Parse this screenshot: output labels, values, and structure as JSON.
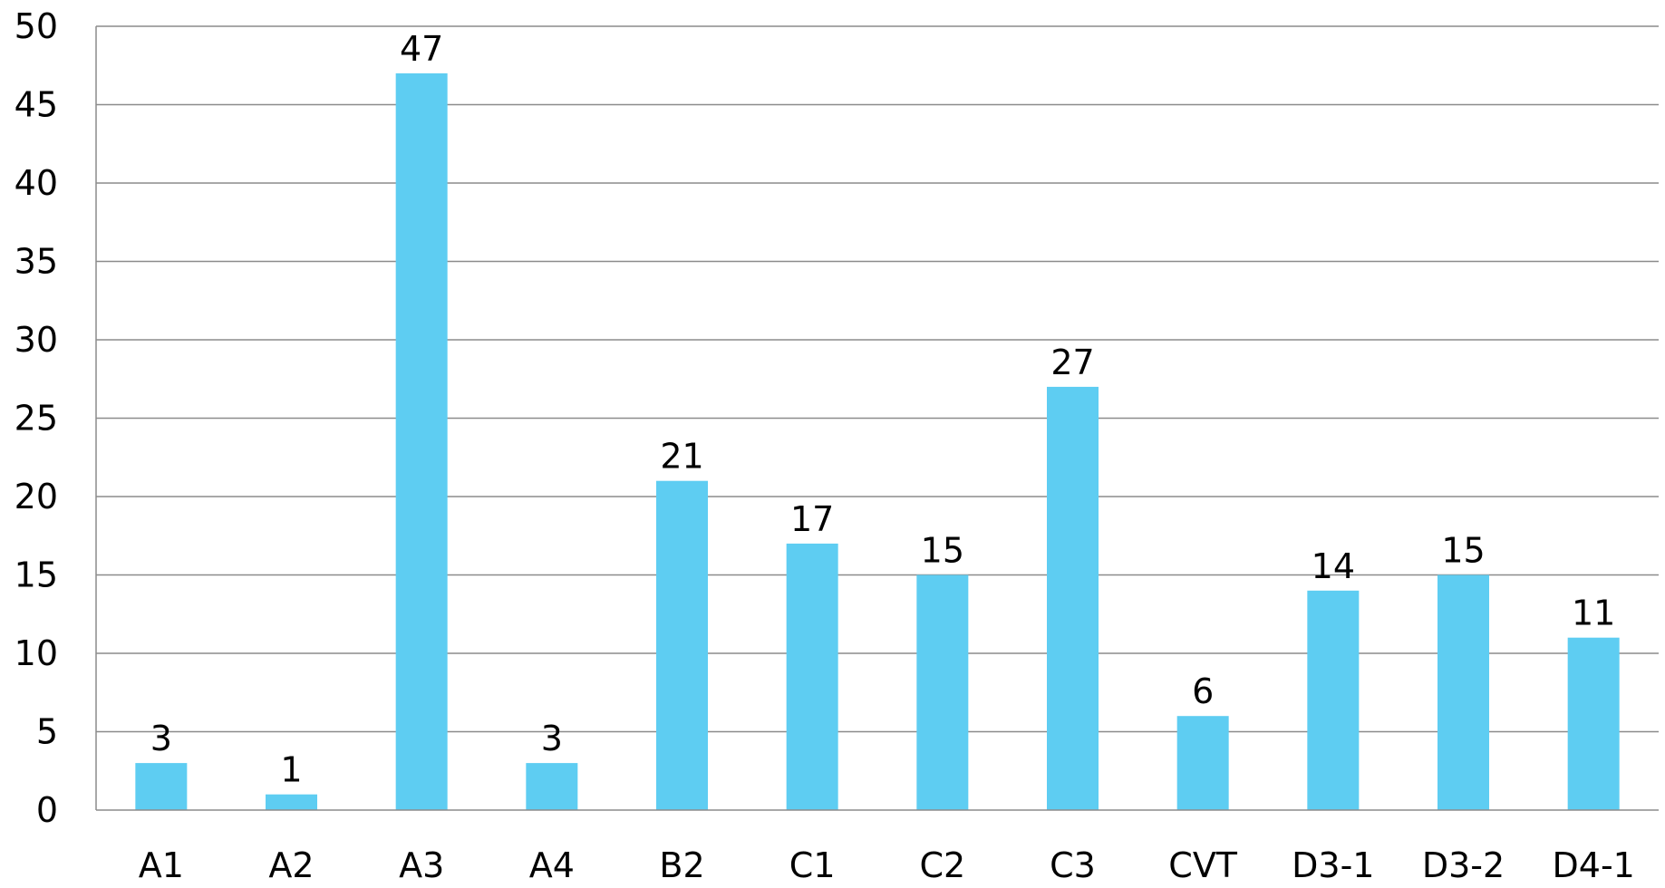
{
  "chart_data": {
    "type": "bar",
    "title": "",
    "xlabel": "",
    "ylabel": "",
    "categories": [
      "A1",
      "A2",
      "A3",
      "A4",
      "B2",
      "C1",
      "C2",
      "C3",
      "CVT",
      "D3-1",
      "D3-2",
      "D4-1"
    ],
    "values": [
      3,
      1,
      47,
      3,
      21,
      17,
      15,
      27,
      6,
      14,
      15,
      11
    ],
    "ylim": [
      0,
      50
    ],
    "yticks": [
      0,
      5,
      10,
      15,
      20,
      25,
      30,
      35,
      40,
      45,
      50
    ],
    "grid": true,
    "legend": "none",
    "data_labels": true
  },
  "colors": {
    "bar": "#5ECDF2",
    "grid": "#8C8C8C",
    "axis": "#8C8C8C",
    "text": "#000000"
  }
}
